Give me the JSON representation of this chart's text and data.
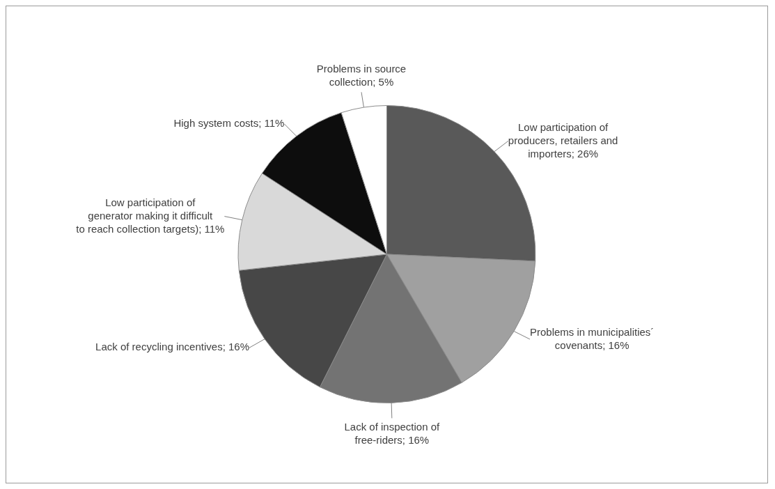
{
  "chart_data": {
    "type": "pie",
    "categories": [
      "Low participation of producers, retailers and importers",
      "Problems in municipalities´ covenants",
      "Lack of inspection of free-riders",
      "Lack of recycling incentives",
      "Low participation of generator making it difficult to reach collection targets)",
      "High system costs",
      "Problems in source collection"
    ],
    "values": [
      26,
      16,
      16,
      16,
      11,
      11,
      5
    ],
    "value_labels": [
      "; 26%",
      "; 16%",
      "; 16%",
      "; 16%",
      "; 11%",
      "; 11%",
      "; 5%"
    ],
    "colors": [
      "#595959",
      "#a0a0a0",
      "#737373",
      "#474747",
      "#d9d9d9",
      "#0d0d0d",
      "#ffffff"
    ],
    "legend": false
  }
}
